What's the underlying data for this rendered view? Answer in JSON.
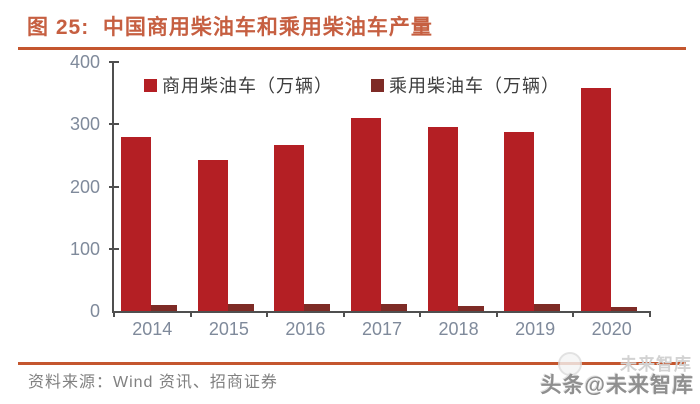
{
  "title": "图 25:  中国商用柴油车和乘用柴油车产量",
  "chart_data": {
    "type": "bar",
    "title": "中国商用柴油车和乘用柴油车产量",
    "categories": [
      "2014",
      "2015",
      "2016",
      "2017",
      "2018",
      "2019",
      "2020"
    ],
    "series": [
      {
        "name": "商用柴油车（万辆）",
        "color": "#b41f24",
        "values": [
          280,
          242,
          267,
          310,
          296,
          288,
          358
        ]
      },
      {
        "name": "乘用柴油车（万辆）",
        "color": "#7e2b26",
        "values": [
          10,
          12,
          11,
          12,
          8,
          11,
          7
        ]
      }
    ],
    "xlabel": "",
    "ylabel": "",
    "ylim": [
      0,
      400
    ],
    "yticks": [
      0,
      100,
      200,
      300,
      400
    ],
    "grid": false,
    "legend_position": "top-inside"
  },
  "colors": {
    "title_text": "#c65f41",
    "rule": "#c4562e",
    "axis_line": "#4f4f4f",
    "axis_text": "#7f8a9b",
    "legend_text": "#3d3d3d",
    "source_text": "#808080",
    "watermark_text": "#8f8f8f"
  },
  "footer": {
    "source_label": "资料来源：Wind 资讯、招商证券",
    "watermark_main": "头条@未来智库",
    "watermark_ghost": "未来智库"
  }
}
